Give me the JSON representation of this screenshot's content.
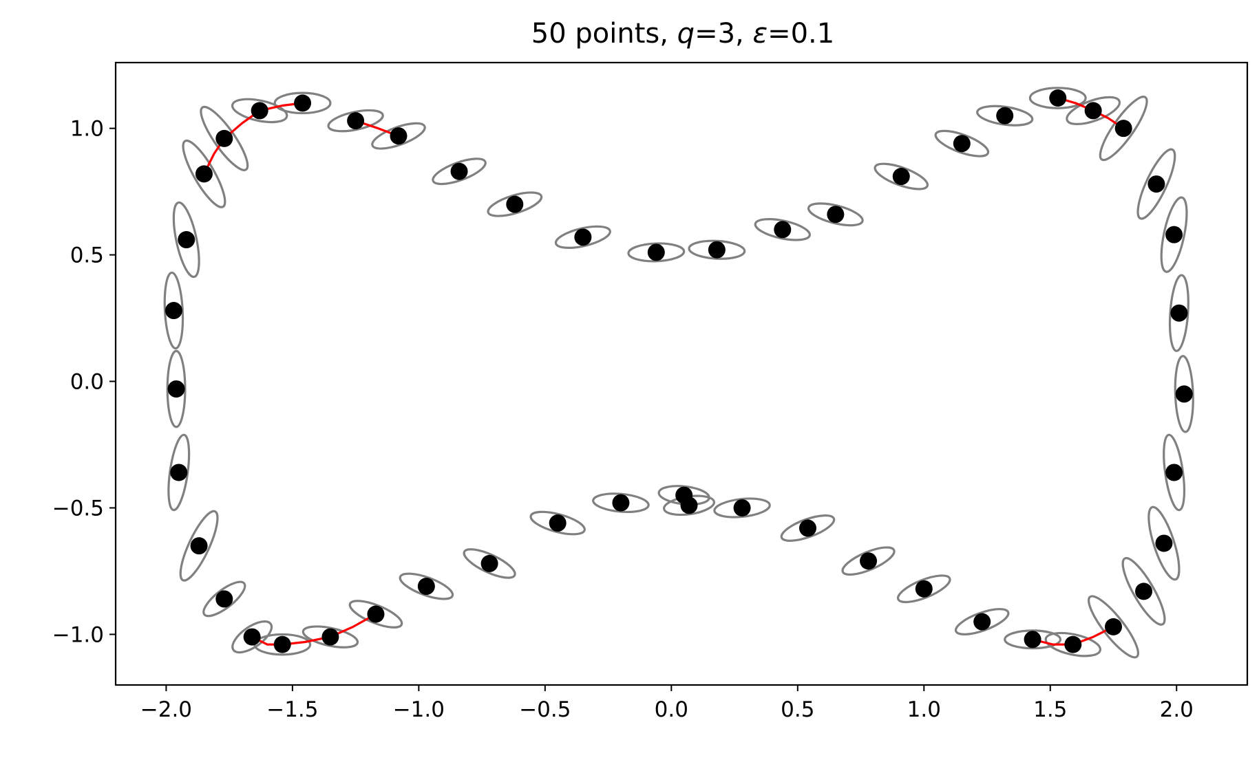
{
  "chart_data": {
    "type": "scatter",
    "title": "50 points, q=3, ε=0.1",
    "title_parts": [
      "50 points, ",
      "q",
      "=3, ",
      "ε",
      "=0.1"
    ],
    "xlabel": "",
    "ylabel": "",
    "xlim": [
      -2.2,
      2.28
    ],
    "ylim": [
      -1.2,
      1.26
    ],
    "xticks": [
      -2.0,
      -1.5,
      -1.0,
      -0.5,
      0.0,
      0.5,
      1.0,
      1.5,
      2.0
    ],
    "xtick_labels": [
      "−2.0",
      "−1.5",
      "−1.0",
      "−0.5",
      "0.0",
      "0.5",
      "1.0",
      "1.5",
      "2.0"
    ],
    "yticks": [
      -1.0,
      -0.5,
      0.0,
      0.5,
      1.0
    ],
    "ytick_labels": [
      "−1.0",
      "−0.5",
      "0.0",
      "0.5",
      "1.0"
    ],
    "grid": false,
    "colors": {
      "points": "#000000",
      "ellipses": "#808080",
      "red_curves": "#ff0000"
    },
    "points": [
      {
        "x": -1.85,
        "y": 0.82,
        "ew": 0.08,
        "eh": 0.3,
        "angle": 30
      },
      {
        "x": -1.77,
        "y": 0.96,
        "ew": 0.08,
        "eh": 0.3,
        "angle": 35
      },
      {
        "x": -1.63,
        "y": 1.07,
        "ew": 0.22,
        "eh": 0.08,
        "angle": -12
      },
      {
        "x": -1.46,
        "y": 1.1,
        "ew": 0.22,
        "eh": 0.08,
        "angle": 0
      },
      {
        "x": -1.25,
        "y": 1.03,
        "ew": 0.22,
        "eh": 0.07,
        "angle": 12
      },
      {
        "x": -1.08,
        "y": 0.97,
        "ew": 0.22,
        "eh": 0.07,
        "angle": 20
      },
      {
        "x": -0.84,
        "y": 0.83,
        "ew": 0.22,
        "eh": 0.07,
        "angle": 20
      },
      {
        "x": -0.62,
        "y": 0.7,
        "ew": 0.22,
        "eh": 0.07,
        "angle": 17
      },
      {
        "x": -0.35,
        "y": 0.57,
        "ew": 0.22,
        "eh": 0.07,
        "angle": 13
      },
      {
        "x": -0.06,
        "y": 0.51,
        "ew": 0.22,
        "eh": 0.07,
        "angle": 2
      },
      {
        "x": 0.18,
        "y": 0.52,
        "ew": 0.22,
        "eh": 0.07,
        "angle": -3
      },
      {
        "x": 0.44,
        "y": 0.6,
        "ew": 0.22,
        "eh": 0.07,
        "angle": -12
      },
      {
        "x": 0.65,
        "y": 0.66,
        "ew": 0.22,
        "eh": 0.07,
        "angle": -14
      },
      {
        "x": 0.91,
        "y": 0.81,
        "ew": 0.22,
        "eh": 0.07,
        "angle": -20
      },
      {
        "x": 1.15,
        "y": 0.94,
        "ew": 0.22,
        "eh": 0.07,
        "angle": -20
      },
      {
        "x": 1.32,
        "y": 1.05,
        "ew": 0.22,
        "eh": 0.07,
        "angle": -8
      },
      {
        "x": 1.53,
        "y": 1.12,
        "ew": 0.22,
        "eh": 0.08,
        "angle": 0
      },
      {
        "x": 1.67,
        "y": 1.07,
        "ew": 0.22,
        "eh": 0.08,
        "angle": 20
      },
      {
        "x": 1.79,
        "y": 1.0,
        "ew": 0.08,
        "eh": 0.3,
        "angle": -35
      },
      {
        "x": 1.92,
        "y": 0.78,
        "ew": 0.08,
        "eh": 0.3,
        "angle": -25
      },
      {
        "x": 1.99,
        "y": 0.58,
        "ew": 0.08,
        "eh": 0.3,
        "angle": -12
      },
      {
        "x": 2.01,
        "y": 0.27,
        "ew": 0.07,
        "eh": 0.3,
        "angle": -4
      },
      {
        "x": 2.03,
        "y": -0.05,
        "ew": 0.07,
        "eh": 0.3,
        "angle": 2
      },
      {
        "x": 1.99,
        "y": -0.36,
        "ew": 0.07,
        "eh": 0.3,
        "angle": 8
      },
      {
        "x": 1.95,
        "y": -0.64,
        "ew": 0.08,
        "eh": 0.3,
        "angle": 18
      },
      {
        "x": 1.87,
        "y": -0.83,
        "ew": 0.08,
        "eh": 0.3,
        "angle": 30
      },
      {
        "x": 1.75,
        "y": -0.97,
        "ew": 0.08,
        "eh": 0.3,
        "angle": 38
      },
      {
        "x": 1.59,
        "y": -1.04,
        "ew": 0.22,
        "eh": 0.08,
        "angle": -12
      },
      {
        "x": 1.43,
        "y": -1.02,
        "ew": 0.22,
        "eh": 0.07,
        "angle": 0
      },
      {
        "x": 1.23,
        "y": -0.95,
        "ew": 0.22,
        "eh": 0.07,
        "angle": 20
      },
      {
        "x": 1.0,
        "y": -0.82,
        "ew": 0.22,
        "eh": 0.07,
        "angle": 22
      },
      {
        "x": 0.78,
        "y": -0.71,
        "ew": 0.22,
        "eh": 0.07,
        "angle": 23
      },
      {
        "x": 0.54,
        "y": -0.58,
        "ew": 0.22,
        "eh": 0.07,
        "angle": 20
      },
      {
        "x": 0.28,
        "y": -0.5,
        "ew": 0.22,
        "eh": 0.07,
        "angle": 6
      },
      {
        "x": 0.07,
        "y": -0.49,
        "ew": 0.2,
        "eh": 0.07,
        "angle": 8
      },
      {
        "x": 0.05,
        "y": -0.45,
        "ew": 0.2,
        "eh": 0.07,
        "angle": -6
      },
      {
        "x": -0.2,
        "y": -0.48,
        "ew": 0.22,
        "eh": 0.07,
        "angle": -5
      },
      {
        "x": -0.45,
        "y": -0.56,
        "ew": 0.22,
        "eh": 0.07,
        "angle": -15
      },
      {
        "x": -0.72,
        "y": -0.72,
        "ew": 0.22,
        "eh": 0.07,
        "angle": -25
      },
      {
        "x": -0.97,
        "y": -0.81,
        "ew": 0.22,
        "eh": 0.07,
        "angle": -20
      },
      {
        "x": -1.17,
        "y": -0.92,
        "ew": 0.22,
        "eh": 0.07,
        "angle": -22
      },
      {
        "x": -1.35,
        "y": -1.01,
        "ew": 0.22,
        "eh": 0.07,
        "angle": -12
      },
      {
        "x": -1.54,
        "y": -1.04,
        "ew": 0.22,
        "eh": 0.08,
        "angle": 0
      },
      {
        "x": -1.66,
        "y": -1.01,
        "ew": 0.18,
        "eh": 0.08,
        "angle": 35
      },
      {
        "x": -1.77,
        "y": -0.86,
        "ew": 0.2,
        "eh": 0.07,
        "angle": 38
      },
      {
        "x": -1.87,
        "y": -0.65,
        "ew": 0.08,
        "eh": 0.3,
        "angle": -25
      },
      {
        "x": -1.95,
        "y": -0.36,
        "ew": 0.07,
        "eh": 0.3,
        "angle": -8
      },
      {
        "x": -1.96,
        "y": -0.03,
        "ew": 0.07,
        "eh": 0.3,
        "angle": 0
      },
      {
        "x": -1.97,
        "y": 0.28,
        "ew": 0.07,
        "eh": 0.3,
        "angle": 3
      },
      {
        "x": -1.92,
        "y": 0.56,
        "ew": 0.08,
        "eh": 0.3,
        "angle": 12
      }
    ],
    "red_curves": [
      [
        [
          -1.85,
          0.82
        ],
        [
          -1.81,
          0.9
        ],
        [
          -1.77,
          0.96
        ],
        [
          -1.7,
          1.02
        ],
        [
          -1.63,
          1.07
        ],
        [
          -1.54,
          1.09
        ],
        [
          -1.46,
          1.1
        ]
      ],
      [
        [
          -1.25,
          1.03
        ],
        [
          -1.16,
          1.0
        ],
        [
          -1.08,
          0.97
        ]
      ],
      [
        [
          1.53,
          1.12
        ],
        [
          1.6,
          1.1
        ],
        [
          1.67,
          1.07
        ],
        [
          1.73,
          1.04
        ],
        [
          1.79,
          1.0
        ]
      ],
      [
        [
          1.43,
          -1.02
        ],
        [
          1.51,
          -1.04
        ],
        [
          1.59,
          -1.04
        ],
        [
          1.67,
          -1.01
        ],
        [
          1.75,
          -0.97
        ]
      ],
      [
        [
          -1.66,
          -1.01
        ],
        [
          -1.6,
          -1.04
        ],
        [
          -1.54,
          -1.04
        ],
        [
          -1.45,
          -1.03
        ],
        [
          -1.35,
          -1.01
        ],
        [
          -1.26,
          -0.97
        ],
        [
          -1.17,
          -0.92
        ]
      ]
    ]
  }
}
